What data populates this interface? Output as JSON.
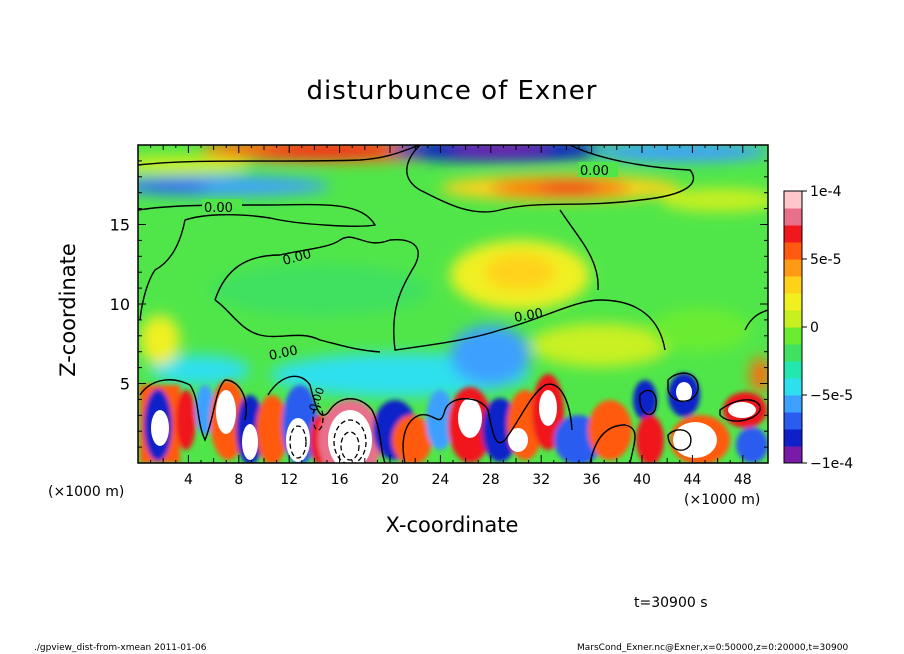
{
  "chart_data": {
    "type": "heatmap",
    "title": "disturbunce of Exner",
    "xlabel": "X-coordinate",
    "ylabel": "Z-coordinate",
    "x_unit": "(×1000 m)",
    "z_unit": "(×1000 m)",
    "xlim": [
      0,
      50
    ],
    "ylim": [
      0,
      20
    ],
    "x_ticks": [
      4,
      8,
      12,
      16,
      20,
      24,
      28,
      32,
      36,
      40,
      44,
      48
    ],
    "y_ticks": [
      5,
      10,
      15
    ],
    "colorbar": {
      "min": -0.0001,
      "max": 0.0001,
      "tick_values": [
        0.0001,
        5e-05,
        0,
        -5e-05,
        -0.0001
      ],
      "tick_labels": [
        "1e-4",
        "5e-5",
        "0",
        "−5e-5",
        "−1e-4"
      ],
      "colors": [
        "#7a1aa8",
        "#1020c8",
        "#2a5cf0",
        "#3ea0ff",
        "#2ee0ee",
        "#22e8b0",
        "#40e060",
        "#6aec30",
        "#c8f020",
        "#f0f020",
        "#ffd21a",
        "#ff9a14",
        "#ff5a10",
        "#f0181c",
        "#e8708a",
        "#ffc6cc"
      ]
    },
    "contour_labels": [
      "0.00",
      "0.00",
      "0.00",
      "0.00",
      "0.00",
      "0.00"
    ],
    "time_label": "t=30900 s",
    "footer_left": "./gpview_dist-from-xmean  2011-01-06",
    "footer_right": "MarsCond_Exner.nc@Exner,x=0:50000,z=0:20000,t=30900"
  }
}
